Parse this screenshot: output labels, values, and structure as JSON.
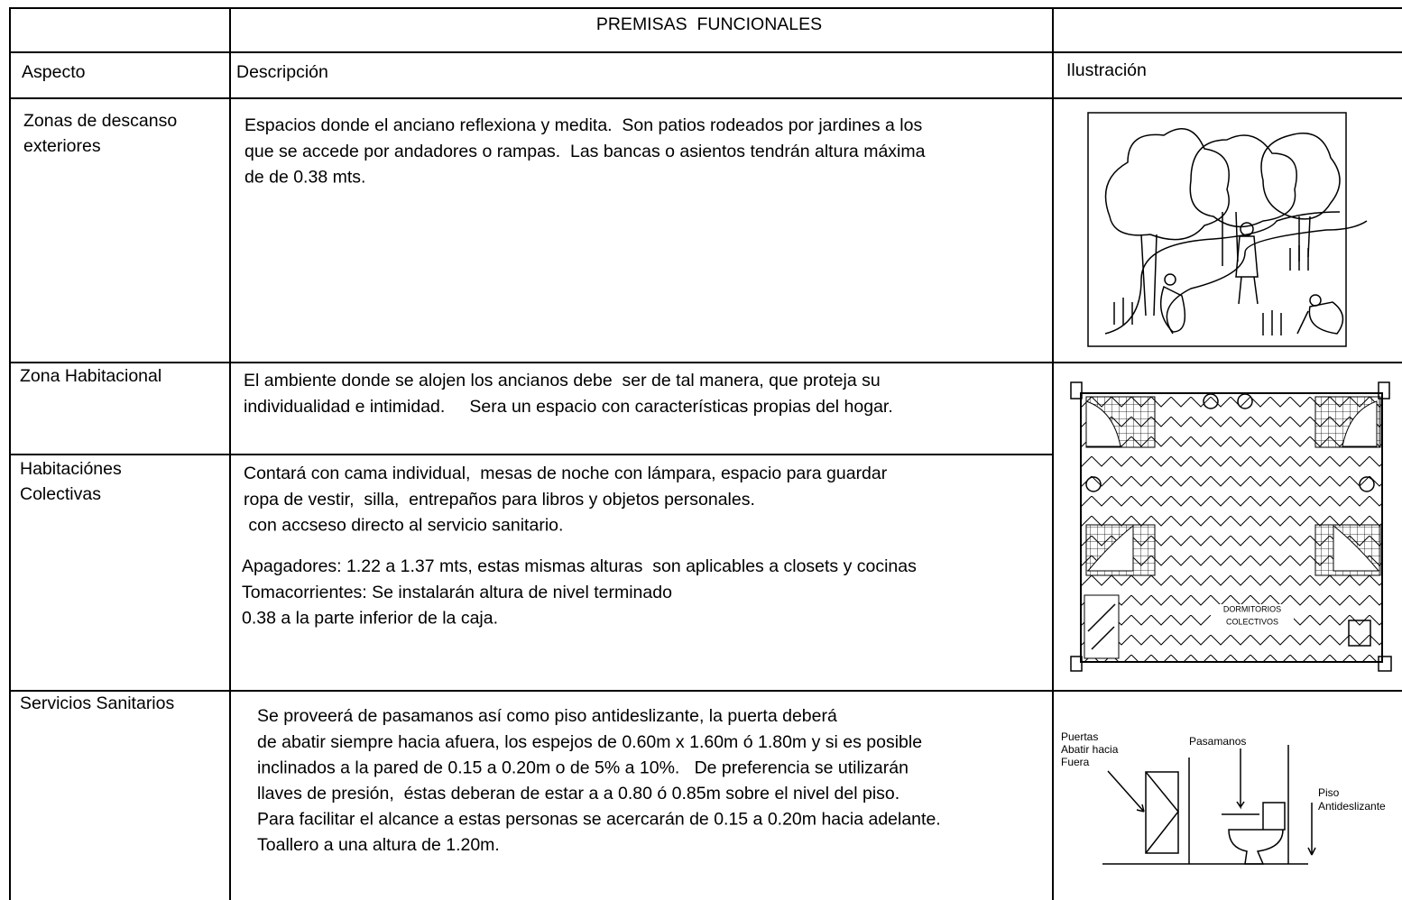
{
  "header": {
    "title": "PREMISAS  FUNCIONALES"
  },
  "table": {
    "columns": [
      "Aspecto",
      "Descripción",
      "Ilustración"
    ],
    "rows": [
      {
        "aspect": [
          "Zonas de descanso",
          "exteriores"
        ],
        "description": [
          [
            "Espacios donde el anciano reflexiona y medita.  Son patios rodeados por jardines a los",
            "que se accede por andadores o rampas.  Las bancas o asientos tendrán altura máxima",
            "de de 0.38 mts."
          ]
        ]
      },
      {
        "aspect": [
          "Zona Habitacional"
        ],
        "description": [
          [
            "El ambiente donde se alojen los ancianos debe  ser de tal manera, que proteja su",
            "individualidad e intimidad.     Sera un espacio con características propias del hogar."
          ]
        ]
      },
      {
        "aspect": [
          "Habitaciónes",
          "Colectivas"
        ],
        "description": [
          [
            "Contará con cama individual,  mesas de noche con lámpara, espacio para guardar",
            "ropa de vestir,  silla,  entrepaños para libros y objetos personales.",
            " con accseso directo al servicio sanitario."
          ],
          [
            "Apagadores: 1.22 a 1.37 mts, estas mismas alturas  son aplicables a closets y cocinas",
            "Tomacorrientes: Se instalarán altura de nivel terminado",
            "0.38 a la parte inferior de la caja."
          ]
        ]
      },
      {
        "aspect": [
          "Servicios Sanitarios"
        ],
        "description": [
          [
            "Se proveerá de pasamanos así como piso antideslizante, la puerta deberá",
            "de abatir siempre hacia afuera, los espejos de 0.60m x 1.60m ó 1.80m y si es posible",
            "inclinados a la pared de 0.15 a 0.20m o de 5% a 10%.   De preferencia se utilizarán",
            "llaves de presión,  éstas deberan de estar a a 0.80 ó 0.85m sobre el nivel del piso.",
            "Para facilitar el alcance a estas personas se acercarán de 0.15 a 0.20m hacia adelante.",
            "Toallero a una altura de 1.20m."
          ]
        ]
      }
    ]
  },
  "illustrations": {
    "dormitorios": [
      "DORMITORIOS",
      "COLECTIVOS"
    ],
    "sanitarios": {
      "puertas": [
        "Puertas",
        "Abatir hacia",
        "Fuera"
      ],
      "pasamanos": "Pasamanos",
      "piso": [
        "Piso",
        "Antideslizante"
      ]
    }
  }
}
